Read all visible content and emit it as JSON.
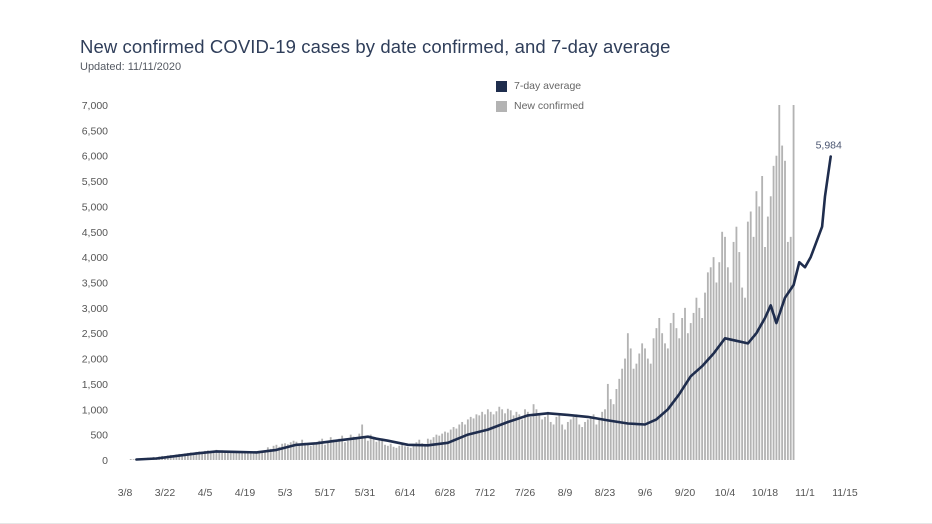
{
  "header": {
    "title": "New confirmed COVID-19 cases by date confirmed, and 7-day average",
    "updated": "Updated: 11/11/2020"
  },
  "legend": {
    "items": [
      {
        "label": "7-day average",
        "color": "#1f2d4d",
        "icon": "square-swatch"
      },
      {
        "label": "New confirmed",
        "color": "#b3b3b3",
        "icon": "square-swatch"
      }
    ]
  },
  "chart_data": {
    "type": "bar",
    "grid": false,
    "legend_position": "top-center",
    "x_start": "2020-03-08",
    "xlim_days": [
      0,
      252
    ],
    "x_tick_labels": [
      "3/8",
      "3/22",
      "4/5",
      "4/19",
      "5/3",
      "5/17",
      "5/31",
      "6/14",
      "6/28",
      "7/12",
      "7/26",
      "8/9",
      "8/23",
      "9/6",
      "9/20",
      "10/4",
      "10/18",
      "11/1",
      "11/15"
    ],
    "ylim": [
      0,
      7000
    ],
    "y_tick_labels": [
      "0",
      "500",
      "1,000",
      "1,500",
      "2,000",
      "2,500",
      "3,000",
      "3,500",
      "4,000",
      "4,500",
      "5,000",
      "5,500",
      "6,000",
      "6,500",
      "7,000"
    ],
    "annotation": {
      "text": "5,984",
      "date": "2020-11-10",
      "value": 5984
    },
    "series": [
      {
        "name": "New confirmed",
        "kind": "bar",
        "color": "#b3b3b3",
        "start_date": "2020-03-10",
        "values": [
          20,
          15,
          25,
          30,
          35,
          40,
          45,
          50,
          60,
          55,
          70,
          80,
          75,
          90,
          100,
          95,
          110,
          120,
          115,
          130,
          140,
          150,
          145,
          160,
          170,
          165,
          180,
          190,
          175,
          185,
          200,
          180,
          190,
          175,
          160,
          170,
          155,
          150,
          160,
          165,
          150,
          140,
          155,
          160,
          170,
          180,
          175,
          190,
          250,
          220,
          280,
          300,
          260,
          320,
          330,
          310,
          350,
          380,
          360,
          320,
          400,
          340,
          300,
          280,
          320,
          350,
          380,
          420,
          300,
          340,
          450,
          400,
          380,
          420,
          480,
          350,
          380,
          500,
          460,
          420,
          520,
          700,
          450,
          380,
          500,
          420,
          360,
          400,
          380,
          300,
          280,
          320,
          260,
          240,
          280,
          300,
          270,
          260,
          240,
          300,
          350,
          400,
          330,
          300,
          420,
          400,
          450,
          500,
          480,
          520,
          560,
          540,
          600,
          650,
          620,
          700,
          750,
          700,
          800,
          850,
          820,
          900,
          880,
          950,
          900,
          1000,
          950,
          900,
          960,
          1050,
          1000,
          920,
          1010,
          980,
          880,
          950,
          900,
          800,
          1000,
          950,
          850,
          1100,
          1000,
          900,
          800,
          850,
          950,
          750,
          700,
          850,
          900,
          700,
          600,
          750,
          800,
          850,
          900,
          700,
          650,
          750,
          800,
          850,
          900,
          700,
          800,
          950,
          1000,
          1500,
          1200,
          1100,
          1400,
          1600,
          1800,
          2000,
          2500,
          2200,
          1800,
          1900,
          2100,
          2300,
          2200,
          2000,
          1900,
          2400,
          2600,
          2800,
          2500,
          2300,
          2200,
          2700,
          2900,
          2600,
          2400,
          2800,
          3000,
          2500,
          2700,
          2900,
          3200,
          3000,
          2800,
          3300,
          3700,
          3800,
          4000,
          3500,
          3900,
          4500,
          4400,
          3800,
          3500,
          4300,
          4600,
          4100,
          3400,
          3200,
          4700,
          4900,
          4400,
          5300,
          5000,
          5600,
          4200,
          4800,
          5200,
          5800,
          6000,
          7000,
          6200,
          5900,
          4300,
          4400,
          7000
        ]
      },
      {
        "name": "7-day average",
        "kind": "line",
        "color": "#1f2d4d",
        "points": [
          [
            "2020-03-12",
            10
          ],
          [
            "2020-03-19",
            30
          ],
          [
            "2020-03-26",
            80
          ],
          [
            "2020-04-02",
            130
          ],
          [
            "2020-04-09",
            170
          ],
          [
            "2020-04-16",
            160
          ],
          [
            "2020-04-23",
            150
          ],
          [
            "2020-04-30",
            200
          ],
          [
            "2020-05-07",
            300
          ],
          [
            "2020-05-14",
            330
          ],
          [
            "2020-05-21",
            380
          ],
          [
            "2020-05-28",
            430
          ],
          [
            "2020-06-01",
            460
          ],
          [
            "2020-06-04",
            420
          ],
          [
            "2020-06-08",
            380
          ],
          [
            "2020-06-15",
            300
          ],
          [
            "2020-06-22",
            290
          ],
          [
            "2020-06-29",
            340
          ],
          [
            "2020-07-06",
            500
          ],
          [
            "2020-07-13",
            600
          ],
          [
            "2020-07-20",
            750
          ],
          [
            "2020-07-27",
            880
          ],
          [
            "2020-08-03",
            920
          ],
          [
            "2020-08-10",
            890
          ],
          [
            "2020-08-17",
            850
          ],
          [
            "2020-08-24",
            780
          ],
          [
            "2020-08-31",
            720
          ],
          [
            "2020-09-06",
            700
          ],
          [
            "2020-09-10",
            800
          ],
          [
            "2020-09-14",
            1000
          ],
          [
            "2020-09-18",
            1300
          ],
          [
            "2020-09-22",
            1650
          ],
          [
            "2020-09-26",
            1850
          ],
          [
            "2020-09-30",
            2100
          ],
          [
            "2020-10-04",
            2400
          ],
          [
            "2020-10-08",
            2350
          ],
          [
            "2020-10-12",
            2300
          ],
          [
            "2020-10-15",
            2500
          ],
          [
            "2020-10-18",
            2800
          ],
          [
            "2020-10-20",
            3050
          ],
          [
            "2020-10-22",
            2700
          ],
          [
            "2020-10-25",
            3200
          ],
          [
            "2020-10-28",
            3450
          ],
          [
            "2020-10-30",
            3900
          ],
          [
            "2020-11-01",
            3800
          ],
          [
            "2020-11-03",
            4000
          ],
          [
            "2020-11-05",
            4300
          ],
          [
            "2020-11-07",
            4600
          ],
          [
            "2020-11-08",
            5200
          ],
          [
            "2020-11-09",
            5600
          ],
          [
            "2020-11-10",
            5984
          ]
        ]
      }
    ]
  }
}
